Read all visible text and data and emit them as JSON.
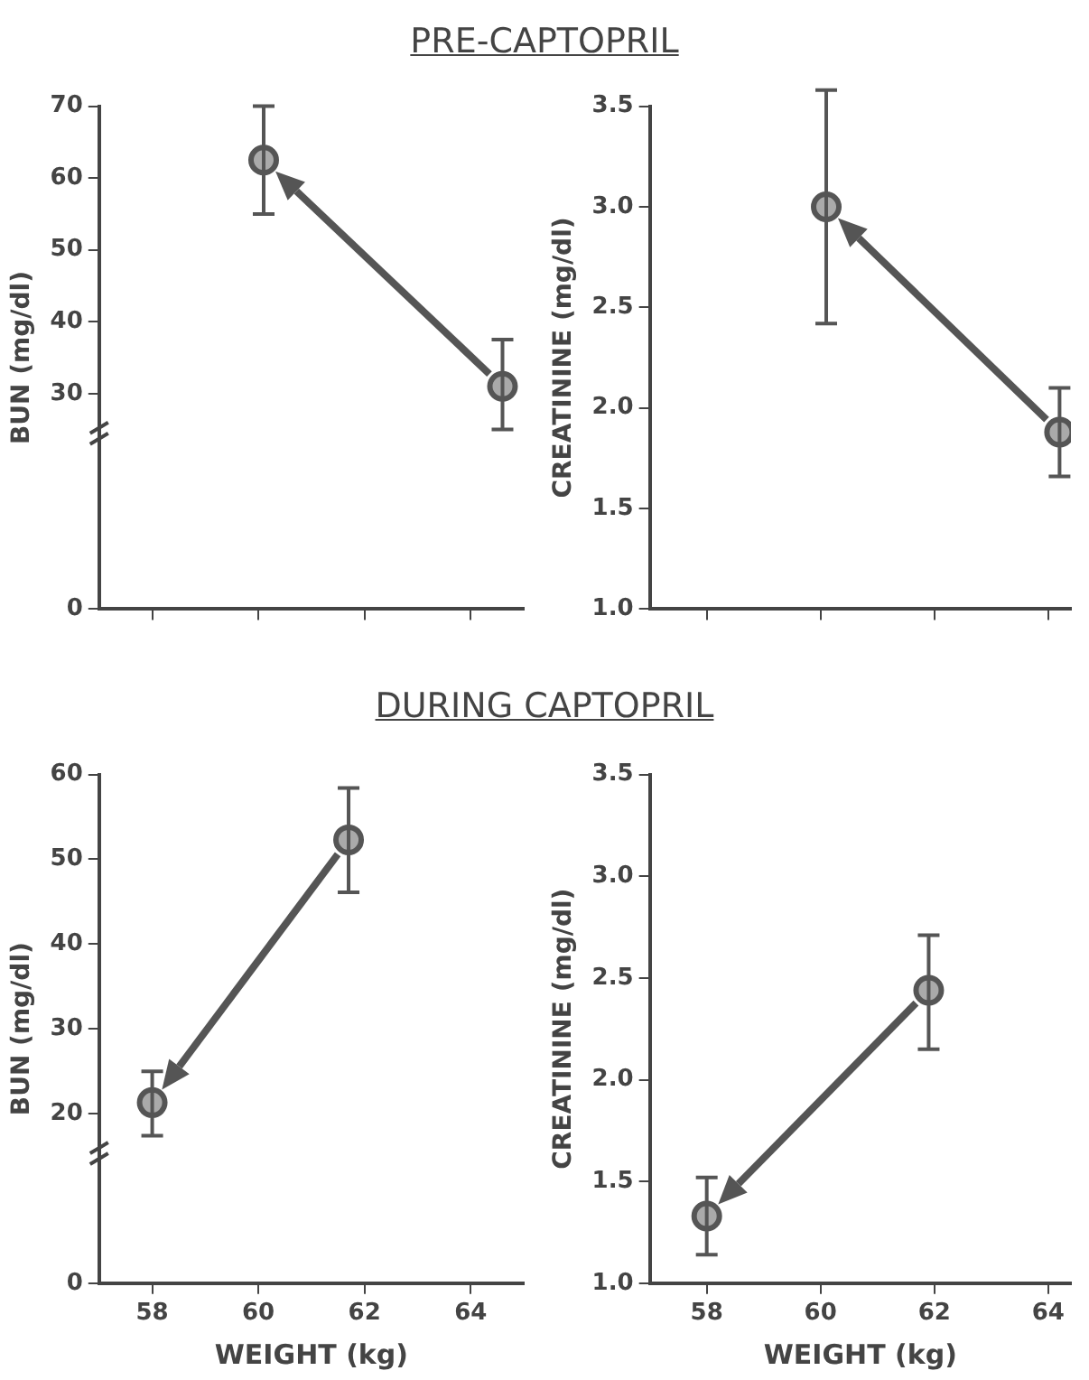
{
  "chart_data": [
    {
      "type": "scatter",
      "title": "PRE-CAPTOPRIL",
      "ylabel": "BUN (mg/dl)",
      "x": [
        60.1,
        64.6
      ],
      "values": [
        62.5,
        31
      ],
      "errors": [
        [
          55,
          70
        ],
        [
          25,
          37.5
        ]
      ],
      "color": "#555555",
      "marker": "circle",
      "grid": false,
      "tick_labels": "y",
      "xlim": [
        57,
        65
      ],
      "xticks": [
        {
          "value": 58,
          "label": null
        },
        {
          "value": 60,
          "label": null
        },
        {
          "value": 62,
          "label": null
        },
        {
          "value": 64,
          "label": null
        }
      ],
      "ylim": [
        0,
        70
      ],
      "yticks": [
        0,
        30,
        40,
        50,
        60,
        70
      ]
    },
    {
      "type": "scatter",
      "ylabel": "CREATININE (mg/dl)",
      "x": [
        60.1,
        64.2
      ],
      "values": [
        3.0,
        1.88
      ],
      "errors": [
        [
          2.42,
          3.58
        ],
        [
          1.66,
          2.1
        ]
      ],
      "color": "#555555",
      "marker": "circle",
      "grid": false,
      "tick_labels": "y",
      "xlim": [
        57,
        64.4
      ],
      "xticks": [
        {
          "value": 58,
          "label": null
        },
        {
          "value": 60,
          "label": null
        },
        {
          "value": 62,
          "label": null
        },
        {
          "value": 64,
          "label": null
        }
      ],
      "ylim": [
        1.0,
        3.5
      ],
      "yticks": [
        {
          "value": 1,
          "label": "1.0"
        },
        1.5,
        {
          "value": 2,
          "label": "2.0"
        },
        2.5,
        {
          "value": 3,
          "label": "3.0"
        },
        3.5
      ]
    },
    {
      "type": "scatter",
      "title": "DURING CAPTOPRIL",
      "xlabel": "WEIGHT (kg)",
      "ylabel": "BUN (mg/dl)",
      "x": [
        58.0,
        61.7
      ],
      "values": [
        21.3,
        52.3
      ],
      "errors": [
        [
          17.4,
          25
        ],
        [
          46.1,
          58.4
        ]
      ],
      "color": "#555555",
      "marker": "circle",
      "grid": false,
      "xlim": [
        57,
        65
      ],
      "xticks": [
        58,
        60,
        62,
        64
      ],
      "ylim": [
        0,
        60
      ],
      "yticks": [
        0,
        20,
        30,
        40,
        50,
        60
      ]
    },
    {
      "type": "scatter",
      "xlabel": "WEIGHT (kg)",
      "ylabel": "CREATININE (mg/dl)",
      "x": [
        58.0,
        61.9
      ],
      "values": [
        1.33,
        2.44
      ],
      "errors": [
        [
          1.14,
          1.52
        ],
        [
          2.15,
          2.71
        ]
      ],
      "color": "#555555",
      "marker": "circle",
      "grid": false,
      "xlim": [
        57,
        64.4
      ],
      "xticks": [
        58,
        60,
        62,
        64
      ],
      "ylim": [
        1.0,
        3.5
      ],
      "yticks": [
        {
          "value": 1,
          "label": "1.0"
        },
        1.5,
        {
          "value": 2,
          "label": "2.0"
        },
        2.5,
        {
          "value": 3,
          "label": "3.0"
        },
        3.5
      ]
    }
  ]
}
